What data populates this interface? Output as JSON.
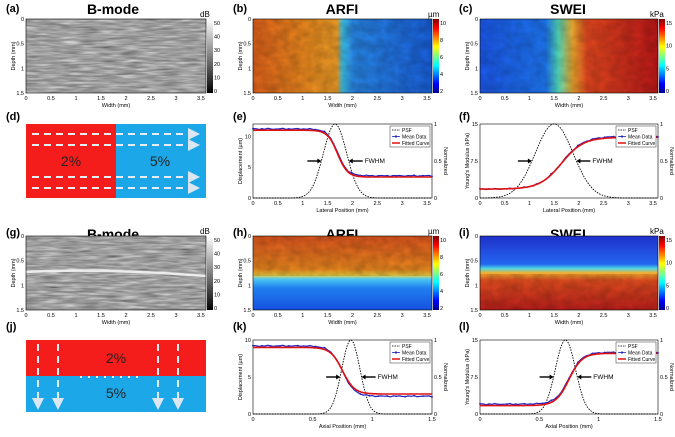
{
  "panels": {
    "a": {
      "letter": "(a)",
      "title": "B-mode",
      "unit": "dB",
      "cticks": [
        "0",
        "10",
        "20",
        "30",
        "40",
        "50"
      ],
      "xticks": [
        "0",
        "0.5",
        "1",
        "1.5",
        "2",
        "2.5",
        "3",
        "3.5"
      ],
      "yticks": [
        "0",
        "0.5",
        "1",
        "1.5"
      ],
      "xlabel": "Width (mm)",
      "ylabel": "Depth (mm)"
    },
    "b": {
      "letter": "(b)",
      "title": "ARFI",
      "unit": "µm",
      "cticks": [
        "2",
        "4",
        "6",
        "8",
        "10"
      ],
      "xticks": [
        "0",
        "0.5",
        "1",
        "1.5",
        "2",
        "2.5",
        "3",
        "3.5"
      ],
      "yticks": [
        "0",
        "0.5",
        "1",
        "1.5"
      ],
      "xlabel": "Width (mm)",
      "ylabel": "Depth (mm)"
    },
    "c": {
      "letter": "(c)",
      "title": "SWEI",
      "unit": "kPa",
      "cticks": [
        "0",
        "5",
        "10",
        "15"
      ],
      "xticks": [
        "0",
        "0.5",
        "1",
        "1.5",
        "2",
        "2.5",
        "3",
        "3.5"
      ],
      "yticks": [
        "0",
        "0.5",
        "1",
        "1.5"
      ],
      "xlabel": "Width (mm)",
      "ylabel": "Depth (mm)"
    },
    "d": {
      "letter": "(d)",
      "left_pct": "2%",
      "right_pct": "5%"
    },
    "e": {
      "letter": "(e)",
      "xlabel": "Lateral Position (mm)",
      "ylabel": "Displacement (µm)",
      "ylabel2": "Normalized",
      "legend": [
        "PSF",
        "Mean Data",
        "Fitted Curve"
      ],
      "fwhm": "FWHM",
      "xticks": [
        "0",
        "0.5",
        "1",
        "1.5",
        "2",
        "2.5",
        "3",
        "3.5"
      ],
      "yticks": [
        "0",
        "5",
        "10"
      ],
      "y2ticks": [
        "0",
        "0.5",
        "1"
      ]
    },
    "f": {
      "letter": "(f)",
      "xlabel": "Lateral Position (mm)",
      "ylabel": "Young's Modulus (kPa)",
      "ylabel2": "Normalized",
      "legend": [
        "PSF",
        "Mean Data",
        "Fitted Curve"
      ],
      "fwhm": "FWHM",
      "xticks": [
        "0",
        "0.5",
        "1",
        "1.5",
        "2",
        "2.5",
        "3",
        "3.5"
      ],
      "yticks": [
        "0",
        "7.5",
        "15"
      ],
      "y2ticks": [
        "0",
        "0.5",
        "1"
      ]
    },
    "g": {
      "letter": "(g)",
      "title": "B-mode",
      "unit": "dB",
      "cticks": [
        "0",
        "10",
        "20",
        "30",
        "40",
        "50"
      ],
      "xticks": [
        "0",
        "0.5",
        "1",
        "1.5",
        "2",
        "2.5",
        "3",
        "3.5"
      ],
      "yticks": [
        "0",
        "0.5",
        "1",
        "1.5"
      ],
      "xlabel": "Width (mm)",
      "ylabel": "Depth (mm)"
    },
    "h": {
      "letter": "(h)",
      "title": "ARFI",
      "unit": "µm",
      "cticks": [
        "2",
        "4",
        "6",
        "8",
        "10"
      ],
      "xticks": [
        "0",
        "0.5",
        "1",
        "1.5",
        "2",
        "2.5",
        "3",
        "3.5"
      ],
      "yticks": [
        "0",
        "0.5",
        "1",
        "1.5"
      ],
      "xlabel": "Width (mm)",
      "ylabel": "Depth (mm)"
    },
    "i": {
      "letter": "(i)",
      "title": "SWEI",
      "unit": "kPa",
      "cticks": [
        "0",
        "5",
        "10",
        "15"
      ],
      "xticks": [
        "0",
        "0.5",
        "1",
        "1.5",
        "2",
        "2.5",
        "3",
        "3.5"
      ],
      "yticks": [
        "0",
        "0.5",
        "1",
        "1.5"
      ],
      "xlabel": "Width (mm)",
      "ylabel": "Depth (mm)"
    },
    "j": {
      "letter": "(j)",
      "top_pct": "2%",
      "bottom_pct": "5%"
    },
    "k": {
      "letter": "(k)",
      "xlabel": "Axial Position (mm)",
      "ylabel": "Displacement (µm)",
      "ylabel2": "Normalized",
      "legend": [
        "PSF",
        "Mean Data",
        "Fitted Curve"
      ],
      "fwhm": "FWHM",
      "xticks": [
        "0",
        "0.5",
        "1",
        "1.5"
      ],
      "yticks": [
        "0",
        "5",
        "10"
      ],
      "y2ticks": [
        "0",
        "0.5",
        "1"
      ]
    },
    "l": {
      "letter": "(l)",
      "xlabel": "Axial Position (mm)",
      "ylabel": "Young's Modulus (kPa)",
      "ylabel2": "Normalized",
      "legend": [
        "PSF",
        "Mean Data",
        "Fitted Curve"
      ],
      "fwhm": "FWHM",
      "xticks": [
        "0",
        "0.5",
        "1",
        "1.5"
      ],
      "yticks": [
        "0",
        "7.5",
        "15"
      ],
      "y2ticks": [
        "0",
        "0.5",
        "1"
      ]
    }
  },
  "chart_data": [
    {
      "id": "e",
      "type": "line",
      "x_range": [
        0,
        3.6
      ],
      "y_range": [
        0,
        12
      ],
      "y2_range": [
        0,
        1
      ],
      "series": [
        {
          "name": "PSF",
          "kind": "gaussian",
          "center": 1.65,
          "fwhm": 0.55,
          "axis": "y2"
        },
        {
          "name": "Mean Data",
          "kind": "sigmoid",
          "low": 3.6,
          "high": 11.2,
          "center": 1.7,
          "width": 0.1,
          "decreasing": true
        },
        {
          "name": "Fitted Curve",
          "kind": "sigmoid",
          "low": 3.4,
          "high": 11.0,
          "center": 1.7,
          "width": 0.1,
          "decreasing": true
        }
      ]
    },
    {
      "id": "f",
      "type": "line",
      "x_range": [
        0,
        3.6
      ],
      "y_range": [
        0,
        15
      ],
      "y2_range": [
        0,
        1
      ],
      "series": [
        {
          "name": "PSF",
          "kind": "gaussian",
          "center": 1.5,
          "fwhm": 0.9,
          "axis": "y2"
        },
        {
          "name": "Mean Data",
          "kind": "sigmoid",
          "low": 1.8,
          "high": 12.5,
          "center": 1.65,
          "width": 0.22,
          "decreasing": false
        },
        {
          "name": "Fitted Curve",
          "kind": "sigmoid",
          "low": 1.8,
          "high": 12.3,
          "center": 1.65,
          "width": 0.22,
          "decreasing": false
        }
      ]
    },
    {
      "id": "k",
      "type": "line",
      "x_range": [
        0,
        1.5
      ],
      "y_range": [
        0,
        10
      ],
      "y2_range": [
        0,
        1
      ],
      "series": [
        {
          "name": "PSF",
          "kind": "gaussian",
          "center": 0.82,
          "fwhm": 0.18,
          "axis": "y2"
        },
        {
          "name": "Mean Data",
          "kind": "sigmoid",
          "low": 2.4,
          "high": 9.2,
          "center": 0.75,
          "width": 0.05,
          "decreasing": true
        },
        {
          "name": "Fitted Curve",
          "kind": "sigmoid",
          "low": 2.7,
          "high": 9.0,
          "center": 0.75,
          "width": 0.05,
          "decreasing": true
        }
      ]
    },
    {
      "id": "l",
      "type": "line",
      "x_range": [
        0,
        1.5
      ],
      "y_range": [
        0,
        15
      ],
      "y2_range": [
        0,
        1
      ],
      "series": [
        {
          "name": "PSF",
          "kind": "gaussian",
          "center": 0.72,
          "fwhm": 0.2,
          "axis": "y2"
        },
        {
          "name": "Mean Data",
          "kind": "sigmoid",
          "low": 2.0,
          "high": 12.5,
          "center": 0.75,
          "width": 0.055,
          "decreasing": false
        },
        {
          "name": "Fitted Curve",
          "kind": "sigmoid",
          "low": 1.7,
          "high": 12.3,
          "center": 0.75,
          "width": 0.055,
          "decreasing": false
        }
      ]
    }
  ]
}
